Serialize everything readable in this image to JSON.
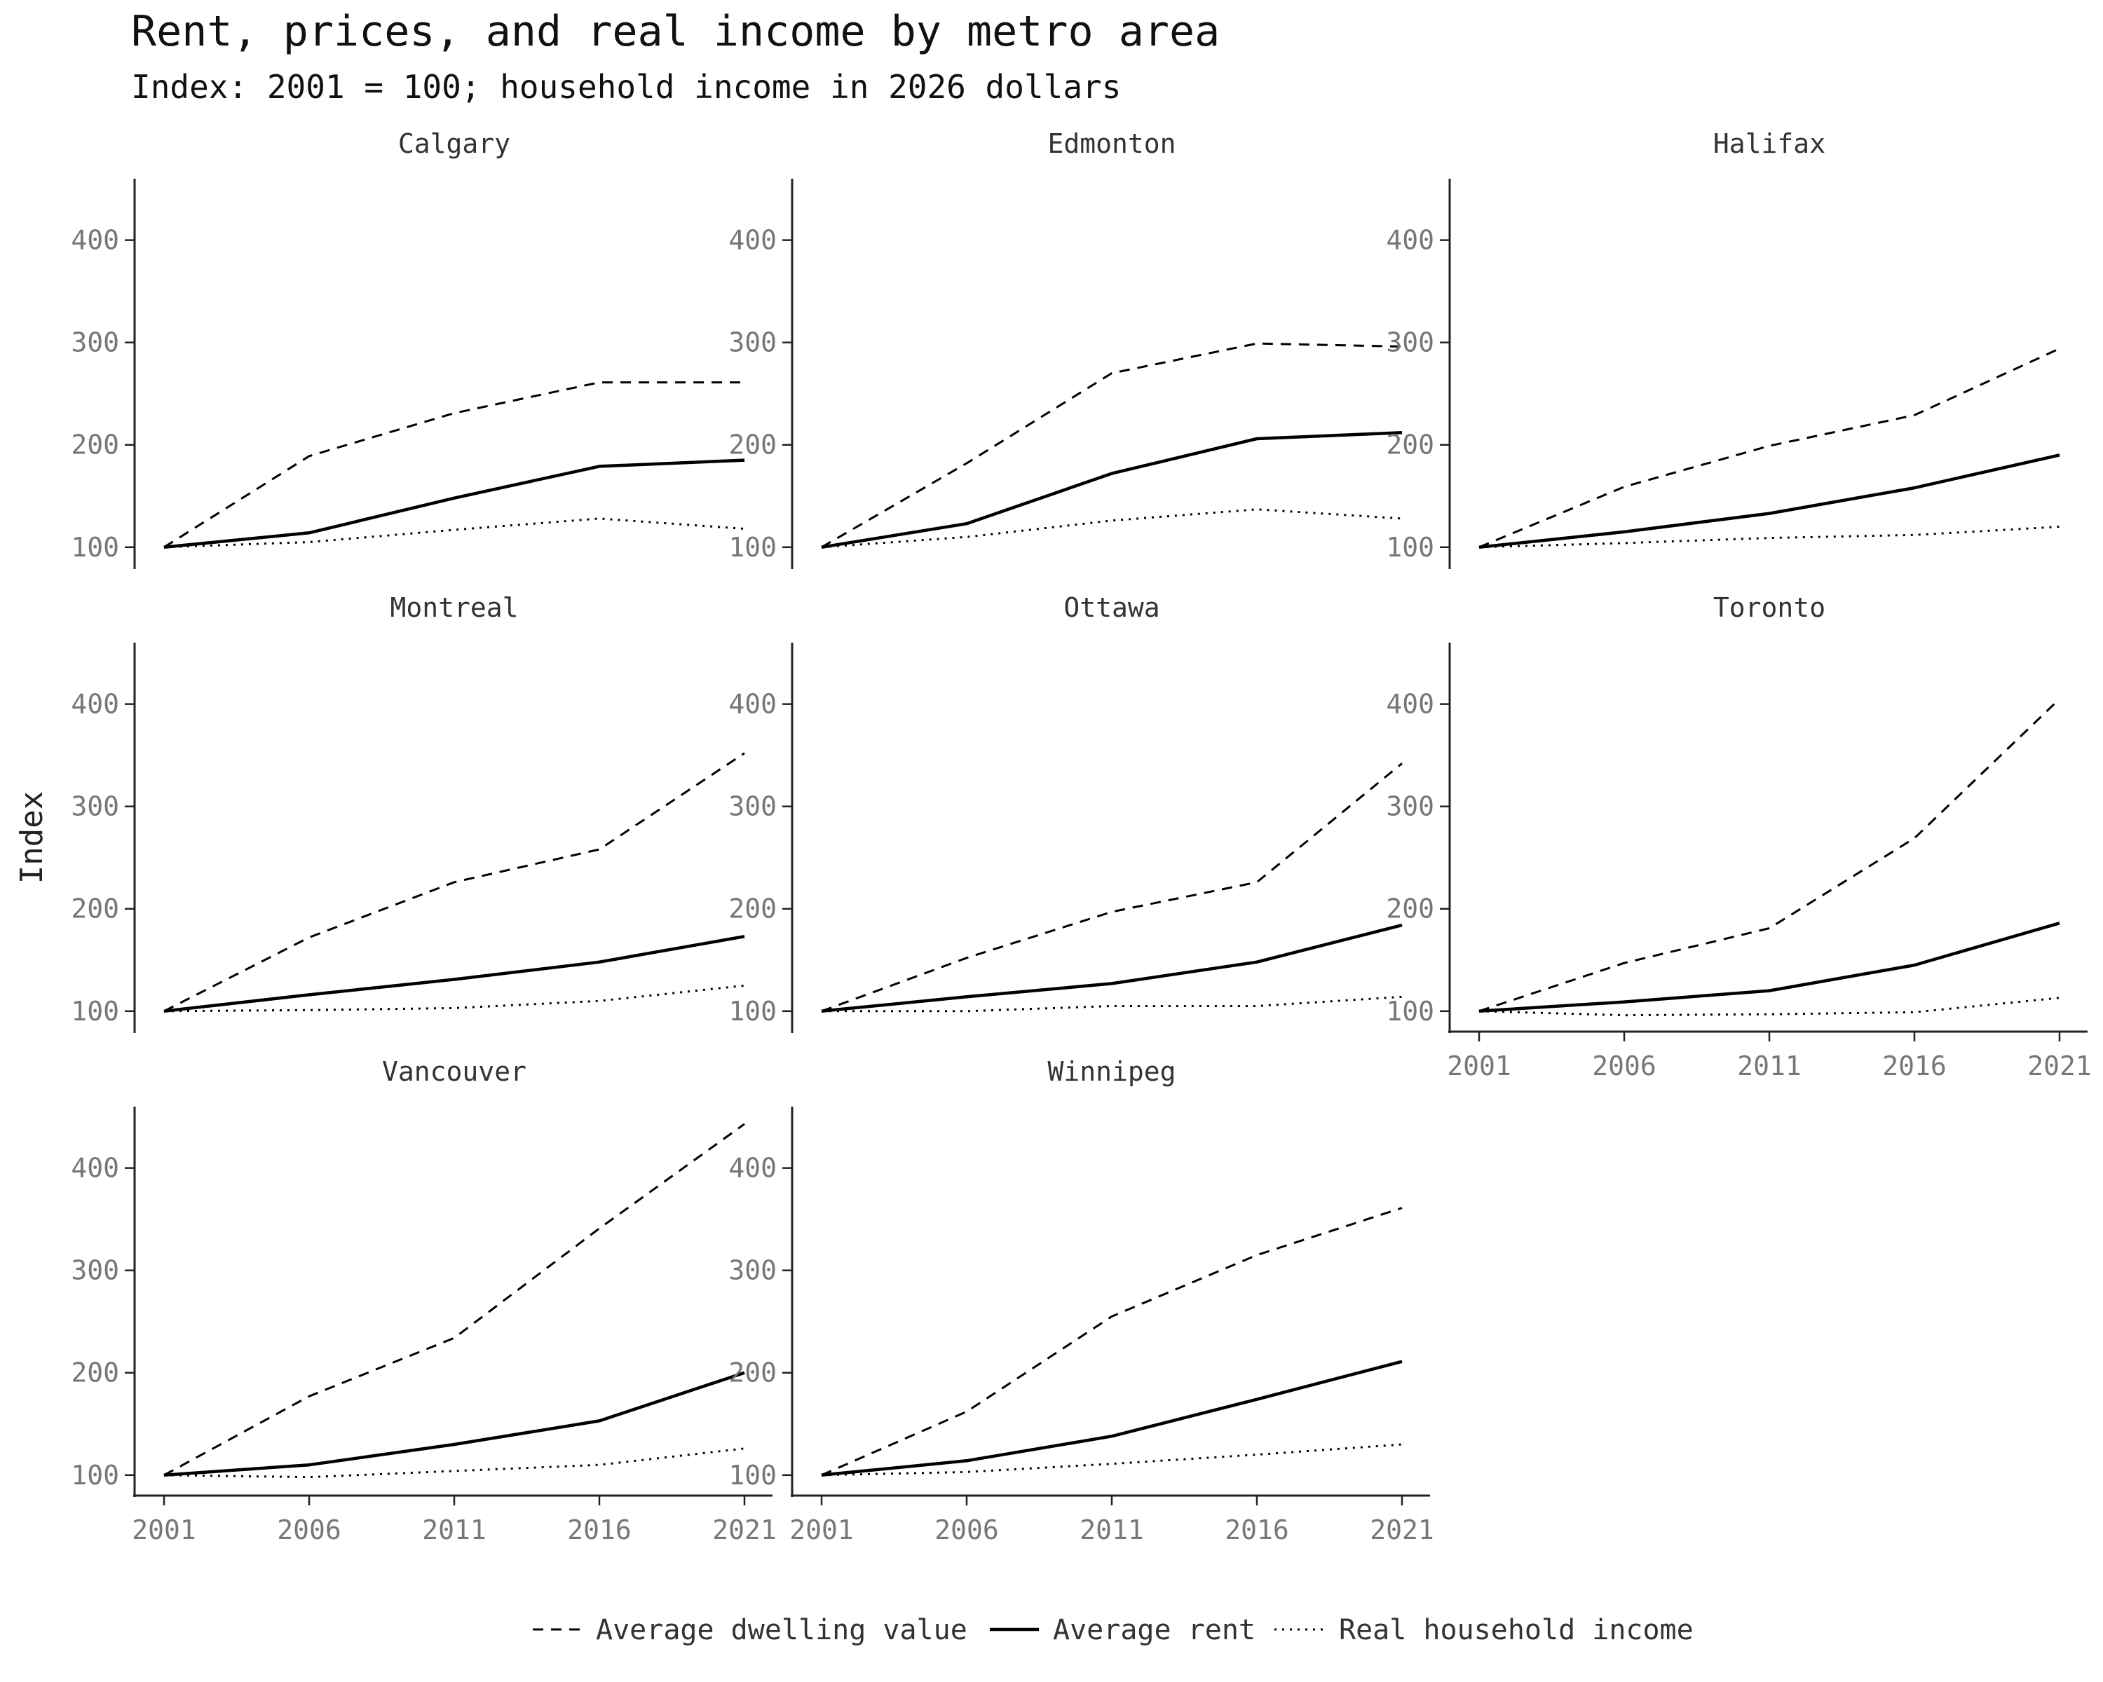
{
  "chart_data": {
    "type": "line",
    "title": "Rent, prices, and real income by metro area",
    "subtitle": "Index: 2001 = 100; household income in 2026 dollars",
    "ylabel": "Index",
    "xlabel": "",
    "x": [
      2001,
      2006,
      2011,
      2016,
      2021
    ],
    "x_ticks": [
      "2001",
      "2006",
      "2011",
      "2016",
      "2021"
    ],
    "y_ticks": [
      "100",
      "200",
      "300",
      "400"
    ],
    "ylim": [
      80,
      460
    ],
    "grid": false,
    "legend_position": "bottom",
    "legend": [
      {
        "key": "dwelling",
        "label": "Average dwelling value",
        "style": "dashed"
      },
      {
        "key": "rent",
        "label": "Average rent",
        "style": "solid"
      },
      {
        "key": "income",
        "label": "Real household income",
        "style": "dotted"
      }
    ],
    "colors": {
      "line": "#000000",
      "axis": "#222222",
      "tick_text": "#777777"
    },
    "panels": [
      {
        "name": "Calgary",
        "dwelling": [
          100,
          189,
          231,
          261,
          261
        ],
        "rent": [
          100,
          114,
          148,
          179,
          185
        ],
        "income": [
          100,
          105,
          117,
          128,
          118
        ]
      },
      {
        "name": "Edmonton",
        "dwelling": [
          100,
          182,
          270,
          299,
          296
        ],
        "rent": [
          100,
          123,
          172,
          206,
          212
        ],
        "income": [
          100,
          110,
          126,
          137,
          128
        ]
      },
      {
        "name": "Halifax",
        "dwelling": [
          100,
          159,
          199,
          229,
          294
        ],
        "rent": [
          100,
          115,
          133,
          158,
          190
        ],
        "income": [
          100,
          104,
          109,
          112,
          120
        ]
      },
      {
        "name": "Montreal",
        "dwelling": [
          100,
          172,
          226,
          258,
          352
        ],
        "rent": [
          100,
          116,
          131,
          148,
          173
        ],
        "income": [
          100,
          101,
          103,
          110,
          125
        ]
      },
      {
        "name": "Ottawa",
        "dwelling": [
          100,
          152,
          197,
          226,
          342
        ],
        "rent": [
          100,
          114,
          127,
          148,
          184
        ],
        "income": [
          100,
          100,
          105,
          105,
          114
        ]
      },
      {
        "name": "Toronto",
        "dwelling": [
          100,
          147,
          181,
          269,
          405
        ],
        "rent": [
          100,
          109,
          120,
          145,
          186
        ],
        "income": [
          100,
          96,
          97,
          99,
          113
        ]
      },
      {
        "name": "Vancouver",
        "dwelling": [
          100,
          177,
          234,
          341,
          443
        ],
        "rent": [
          100,
          110,
          130,
          153,
          200
        ],
        "income": [
          100,
          98,
          104,
          110,
          126
        ]
      },
      {
        "name": "Winnipeg",
        "dwelling": [
          100,
          162,
          255,
          315,
          361
        ],
        "rent": [
          100,
          114,
          138,
          174,
          211
        ],
        "income": [
          100,
          103,
          111,
          120,
          130
        ]
      }
    ]
  }
}
